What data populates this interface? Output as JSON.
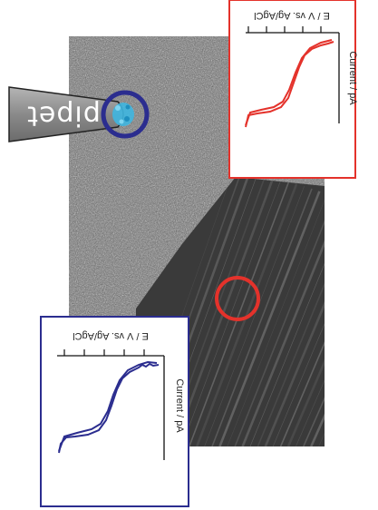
{
  "figure": {
    "pipet_label": "pipet",
    "colors": {
      "red": "#e4322b",
      "blue": "#2b2d8f",
      "tip_fill": "#3fb6e0",
      "pipet_body": "#8f8f8f"
    }
  },
  "chart_data": [
    {
      "type": "line",
      "name": "red-inset",
      "xlabel": "E / V vs. Ag/AgCl",
      "ylabel": "Current / pA",
      "color": "#e4322b"
    },
    {
      "type": "line",
      "name": "blue-inset",
      "xlabel": "E / V vs. Ag/AgCl",
      "ylabel": "Current / pA",
      "color": "#2b2d8f"
    }
  ]
}
